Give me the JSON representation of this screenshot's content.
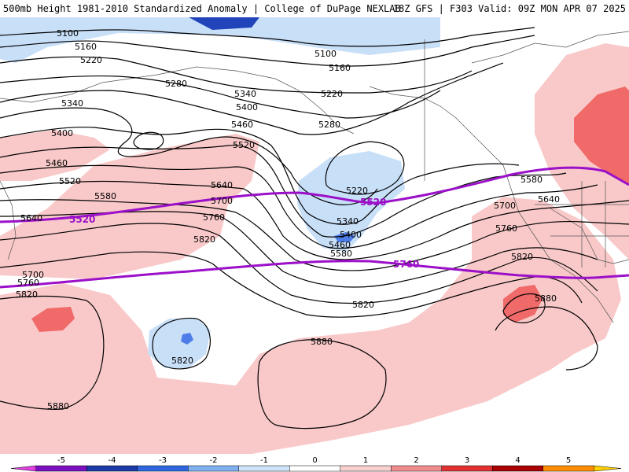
{
  "header": {
    "title": "500mb Height 1981-2010 Standardized Anomaly | College of DuPage NEXLAB",
    "run_info": "18Z GFS | F303 Valid: 09Z MON APR 07 2025"
  },
  "colors": {
    "pos1": "#f9c9c9",
    "pos2": "#f06a6a",
    "neg1": "#c8dff8",
    "neg2": "#4f7de8",
    "neg3": "#2244bb",
    "contour": "#000000",
    "highlight_contour": "#9b10c8",
    "coast": "#333333"
  },
  "contour_labels": [
    {
      "text": "5100"
    },
    {
      "text": "5160"
    },
    {
      "text": "5220"
    },
    {
      "text": "5280"
    },
    {
      "text": "5340"
    },
    {
      "text": "5400"
    },
    {
      "text": "5460"
    },
    {
      "text": "5520"
    },
    {
      "text": "5580"
    },
    {
      "text": "5640"
    },
    {
      "text": "5700"
    },
    {
      "text": "5760"
    },
    {
      "text": "5820"
    },
    {
      "text": "5880"
    }
  ],
  "highlight_labels": [
    "5520",
    "5760"
  ],
  "colorbar": {
    "ticks": [
      "-5",
      "-4",
      "-3",
      "-2",
      "-1",
      "0",
      "1",
      "2",
      "3",
      "4",
      "5"
    ],
    "colors": [
      "#e040e0",
      "#7a10c0",
      "#1c3aa8",
      "#2f66e0",
      "#7fb0f0",
      "#cfe4fa",
      "#ffffff",
      "#f9d0d0",
      "#f08c8c",
      "#e03030",
      "#a80000",
      "#ff8c00",
      "#ffd000"
    ]
  }
}
